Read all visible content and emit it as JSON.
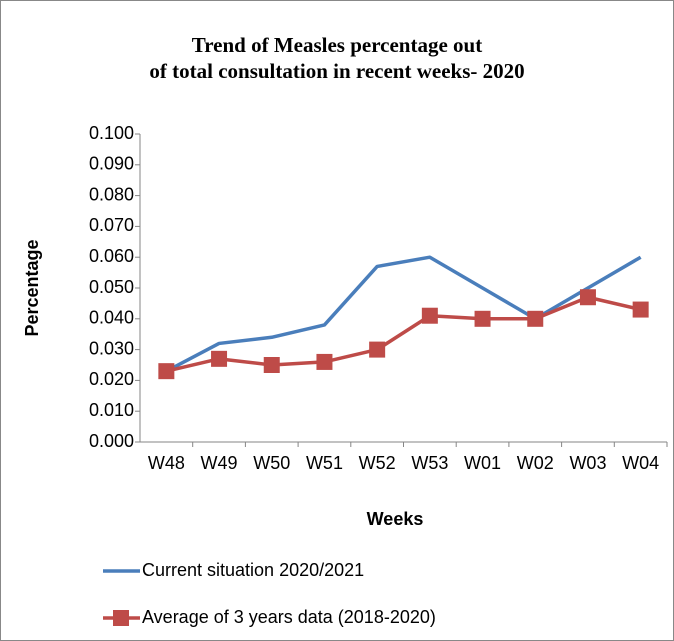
{
  "chart_data": {
    "type": "line",
    "title": "Trend of Measles percentage out of total consultation in recent weeks- 2020",
    "xlabel": "Weeks",
    "ylabel": "Percentage",
    "categories": [
      "W48",
      "W49",
      "W50",
      "W51",
      "W52",
      "W53",
      "W01",
      "W02",
      "W03",
      "W04"
    ],
    "series": [
      {
        "name": "Current situation 2020/2021",
        "color": "#4a7ebb",
        "marker": "none",
        "values": [
          0.023,
          0.032,
          0.034,
          0.038,
          0.057,
          0.06,
          0.05,
          0.04,
          0.05,
          0.06
        ]
      },
      {
        "name": "Average of 3 years data (2018-2020)",
        "color": "#be4b48",
        "marker": "square",
        "values": [
          0.023,
          0.027,
          0.025,
          0.026,
          0.03,
          0.041,
          0.04,
          0.04,
          0.047,
          0.043
        ]
      }
    ],
    "ylim": [
      0,
      0.1
    ],
    "yticks": [
      {
        "value": 0,
        "label": "0.000"
      },
      {
        "value": 0.01,
        "label": "0.010"
      },
      {
        "value": 0.02,
        "label": "0.020"
      },
      {
        "value": 0.03,
        "label": "0.030"
      },
      {
        "value": 0.04,
        "label": "0.040"
      },
      {
        "value": 0.05,
        "label": "0.050"
      },
      {
        "value": 0.06,
        "label": "0.060"
      },
      {
        "value": 0.07,
        "label": "0.070"
      },
      {
        "value": 0.08,
        "label": "0.080"
      },
      {
        "value": 0.09,
        "label": "0.090"
      },
      {
        "value": 0.1,
        "label": "0.100"
      }
    ],
    "grid": false,
    "legend": "bottom"
  }
}
